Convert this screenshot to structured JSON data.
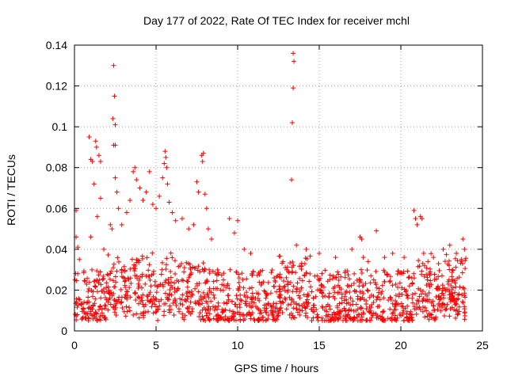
{
  "chart_data": {
    "type": "scatter",
    "title": "Day 177 of 2022, Rate Of TEC Index for receiver mchl",
    "xlabel": "GPS time / hours",
    "ylabel": "ROTI / TECUs",
    "xlim": [
      0,
      25
    ],
    "ylim": [
      0,
      0.14
    ],
    "x_ticks": [
      0,
      5,
      10,
      15,
      20,
      25
    ],
    "x_tick_labels": [
      "0",
      "5",
      "10",
      "15",
      "20",
      "25"
    ],
    "y_ticks": [
      0,
      0.02,
      0.04,
      0.06,
      0.08,
      0.1,
      0.12,
      0.14
    ],
    "y_tick_labels": [
      "0",
      "0.02",
      "0.04",
      "0.06",
      "0.08",
      "0.1",
      "0.12",
      "0.14"
    ],
    "grid": true,
    "marker": "+",
    "color": "#ff0000",
    "series": [
      {
        "name": "ROTI",
        "points": [
          [
            0.1,
            0.059
          ],
          [
            0.1,
            0.046
          ],
          [
            0.2,
            0.041
          ],
          [
            0.3,
            0.035
          ],
          [
            0.2,
            0.028
          ],
          [
            0.9,
            0.095
          ],
          [
            1.0,
            0.084
          ],
          [
            1.1,
            0.083
          ],
          [
            1.2,
            0.072
          ],
          [
            1.3,
            0.093
          ],
          [
            1.35,
            0.09
          ],
          [
            1.5,
            0.086
          ],
          [
            1.6,
            0.083
          ],
          [
            1.6,
            0.065
          ],
          [
            1.4,
            0.056
          ],
          [
            1.0,
            0.046
          ],
          [
            1.8,
            0.04
          ],
          [
            2.2,
            0.052
          ],
          [
            2.3,
            0.05
          ],
          [
            2.4,
            0.13
          ],
          [
            2.45,
            0.115
          ],
          [
            2.35,
            0.104
          ],
          [
            2.5,
            0.101
          ],
          [
            2.4,
            0.091
          ],
          [
            2.5,
            0.091
          ],
          [
            2.5,
            0.075
          ],
          [
            2.6,
            0.068
          ],
          [
            2.7,
            0.06
          ],
          [
            2.9,
            0.052
          ],
          [
            3.2,
            0.058
          ],
          [
            3.4,
            0.064
          ],
          [
            3.6,
            0.078
          ],
          [
            3.7,
            0.08
          ],
          [
            3.8,
            0.074
          ],
          [
            4.0,
            0.07
          ],
          [
            4.2,
            0.064
          ],
          [
            4.4,
            0.068
          ],
          [
            4.6,
            0.078
          ],
          [
            4.8,
            0.062
          ],
          [
            5.0,
            0.06
          ],
          [
            5.2,
            0.066
          ],
          [
            5.4,
            0.075
          ],
          [
            5.5,
            0.082
          ],
          [
            5.55,
            0.088
          ],
          [
            5.6,
            0.085
          ],
          [
            5.65,
            0.08
          ],
          [
            5.7,
            0.072
          ],
          [
            5.8,
            0.063
          ],
          [
            6.0,
            0.058
          ],
          [
            6.2,
            0.054
          ],
          [
            6.6,
            0.055
          ],
          [
            7.0,
            0.05
          ],
          [
            7.3,
            0.052
          ],
          [
            7.5,
            0.073
          ],
          [
            7.6,
            0.068
          ],
          [
            7.8,
            0.086
          ],
          [
            7.9,
            0.087
          ],
          [
            7.85,
            0.083
          ],
          [
            8.0,
            0.067
          ],
          [
            8.1,
            0.06
          ],
          [
            8.2,
            0.05
          ],
          [
            8.4,
            0.045
          ],
          [
            9.5,
            0.055
          ],
          [
            9.8,
            0.048
          ],
          [
            10.0,
            0.054
          ],
          [
            10.4,
            0.04
          ],
          [
            10.8,
            0.038
          ],
          [
            13.4,
            0.136
          ],
          [
            13.45,
            0.132
          ],
          [
            13.4,
            0.119
          ],
          [
            13.35,
            0.102
          ],
          [
            13.3,
            0.074
          ],
          [
            13.6,
            0.042
          ],
          [
            14.2,
            0.04
          ],
          [
            15.0,
            0.038
          ],
          [
            16.0,
            0.036
          ],
          [
            17.0,
            0.04
          ],
          [
            17.5,
            0.046
          ],
          [
            17.6,
            0.045
          ],
          [
            17.7,
            0.036
          ],
          [
            18.0,
            0.034
          ],
          [
            18.5,
            0.049
          ],
          [
            19.0,
            0.036
          ],
          [
            19.5,
            0.038
          ],
          [
            20.2,
            0.036
          ],
          [
            20.8,
            0.059
          ],
          [
            20.9,
            0.055
          ],
          [
            21.0,
            0.052
          ],
          [
            21.2,
            0.056
          ],
          [
            21.3,
            0.055
          ],
          [
            21.4,
            0.038
          ],
          [
            22.0,
            0.036
          ],
          [
            22.6,
            0.04
          ],
          [
            23.0,
            0.042
          ],
          [
            23.4,
            0.038
          ],
          [
            23.8,
            0.045
          ],
          [
            23.9,
            0.04
          ]
        ],
        "band": {
          "description": "dense cloud of points covering 0 to 24 hours",
          "typical_low": 0.005,
          "typical_high": 0.03
        }
      }
    ]
  }
}
